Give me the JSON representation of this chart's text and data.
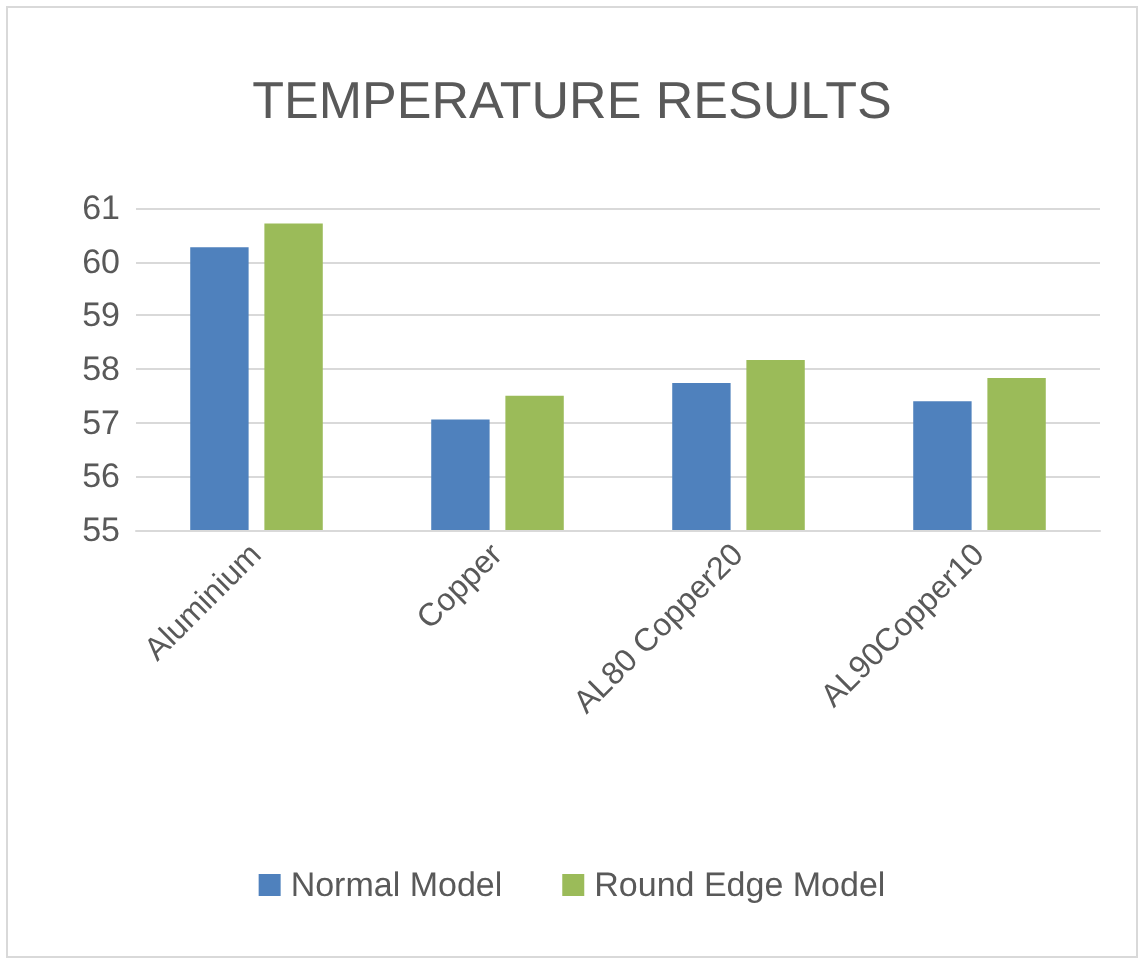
{
  "chart_data": {
    "type": "bar",
    "title": "TEMPERATURE RESULTS",
    "categories": [
      "Aluminium",
      "Copper",
      "AL80 Copper20",
      "AL90Copper10"
    ],
    "series": [
      {
        "name": "Normal Model",
        "color": "#4f81bd",
        "values": [
          60.27,
          57.06,
          57.74,
          57.4
        ]
      },
      {
        "name": "Round Edge Model",
        "color": "#9bbb59",
        "values": [
          60.71,
          57.5,
          58.17,
          57.83
        ]
      }
    ],
    "ylim": [
      55,
      61
    ],
    "yticks": [
      55,
      56,
      57,
      58,
      59,
      60,
      61
    ],
    "grid": "y",
    "legend": "bottom"
  }
}
